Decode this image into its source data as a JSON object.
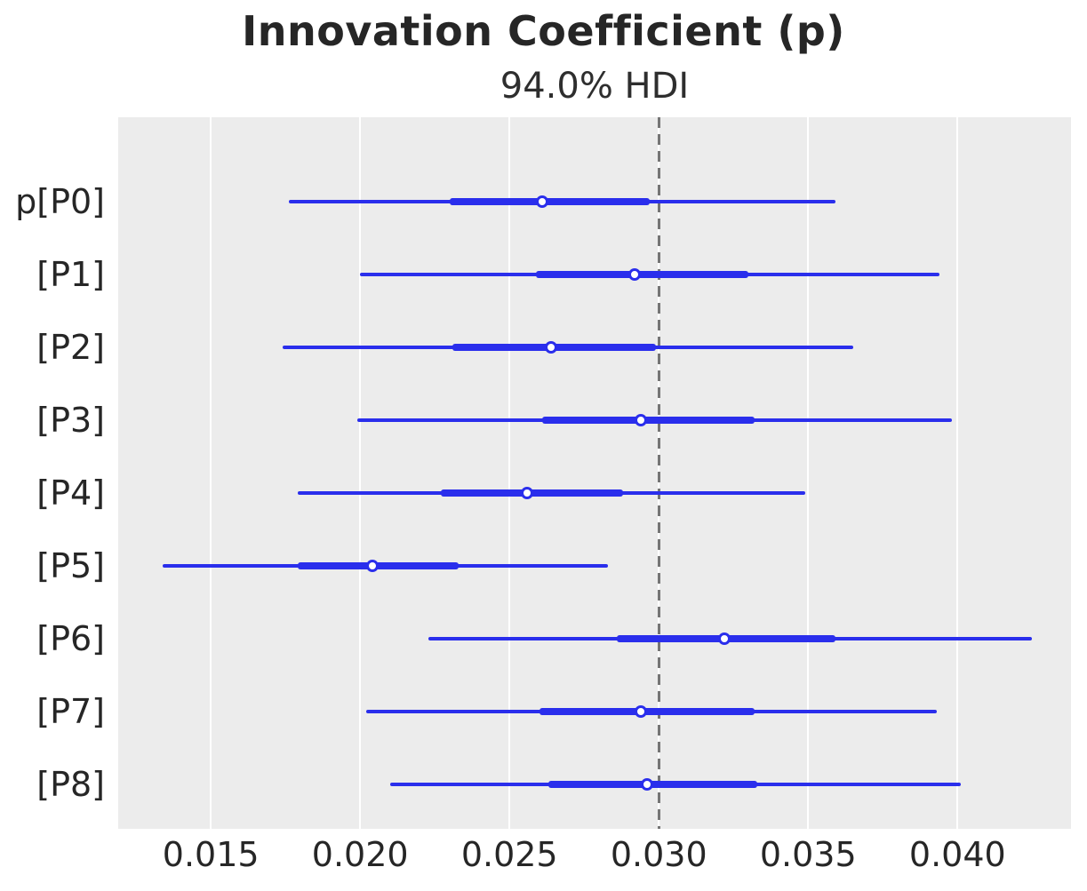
{
  "chart_data": {
    "type": "forest",
    "title": "Innovation Coefficient (p)",
    "subtitle": "94.0% HDI",
    "hdi_probability": "94.0%",
    "legend": "none",
    "grid": "vertical white gridlines on light gray panel",
    "x_axis": {
      "lim": [
        0.0119,
        0.0438
      ],
      "ticks": [
        0.015,
        0.02,
        0.025,
        0.03,
        0.035,
        0.04
      ],
      "tick_labels": [
        "0.015",
        "0.020",
        "0.025",
        "0.030",
        "0.035",
        "0.040"
      ]
    },
    "reference_line_x": 0.03,
    "rows": [
      {
        "label": "p[P0]",
        "hdi": [
          0.0176,
          0.0359
        ],
        "quartile": [
          0.023,
          0.0297
        ],
        "median": 0.0261
      },
      {
        "label": "[P1]",
        "hdi": [
          0.02,
          0.0394
        ],
        "quartile": [
          0.0259,
          0.033
        ],
        "median": 0.0292
      },
      {
        "label": "[P2]",
        "hdi": [
          0.0174,
          0.0365
        ],
        "quartile": [
          0.0231,
          0.0299
        ],
        "median": 0.0264
      },
      {
        "label": "[P3]",
        "hdi": [
          0.0199,
          0.0398
        ],
        "quartile": [
          0.0261,
          0.0332
        ],
        "median": 0.0294
      },
      {
        "label": "[P4]",
        "hdi": [
          0.0179,
          0.0349
        ],
        "quartile": [
          0.0227,
          0.0288
        ],
        "median": 0.0256
      },
      {
        "label": "[P5]",
        "hdi": [
          0.0134,
          0.0283
        ],
        "quartile": [
          0.0179,
          0.0233
        ],
        "median": 0.0204
      },
      {
        "label": "[P6]",
        "hdi": [
          0.0223,
          0.0425
        ],
        "quartile": [
          0.0286,
          0.0359
        ],
        "median": 0.0322
      },
      {
        "label": "[P7]",
        "hdi": [
          0.0202,
          0.0393
        ],
        "quartile": [
          0.026,
          0.0332
        ],
        "median": 0.0294
      },
      {
        "label": "[P8]",
        "hdi": [
          0.021,
          0.0401
        ],
        "quartile": [
          0.0263,
          0.0333
        ],
        "median": 0.0296
      }
    ],
    "colors": {
      "interval": "#2a2eec",
      "marker_face": "#ffffff",
      "reference_line": "#757575",
      "panel_background": "#ececec",
      "gridline": "#ffffff",
      "text": "#262626"
    }
  }
}
